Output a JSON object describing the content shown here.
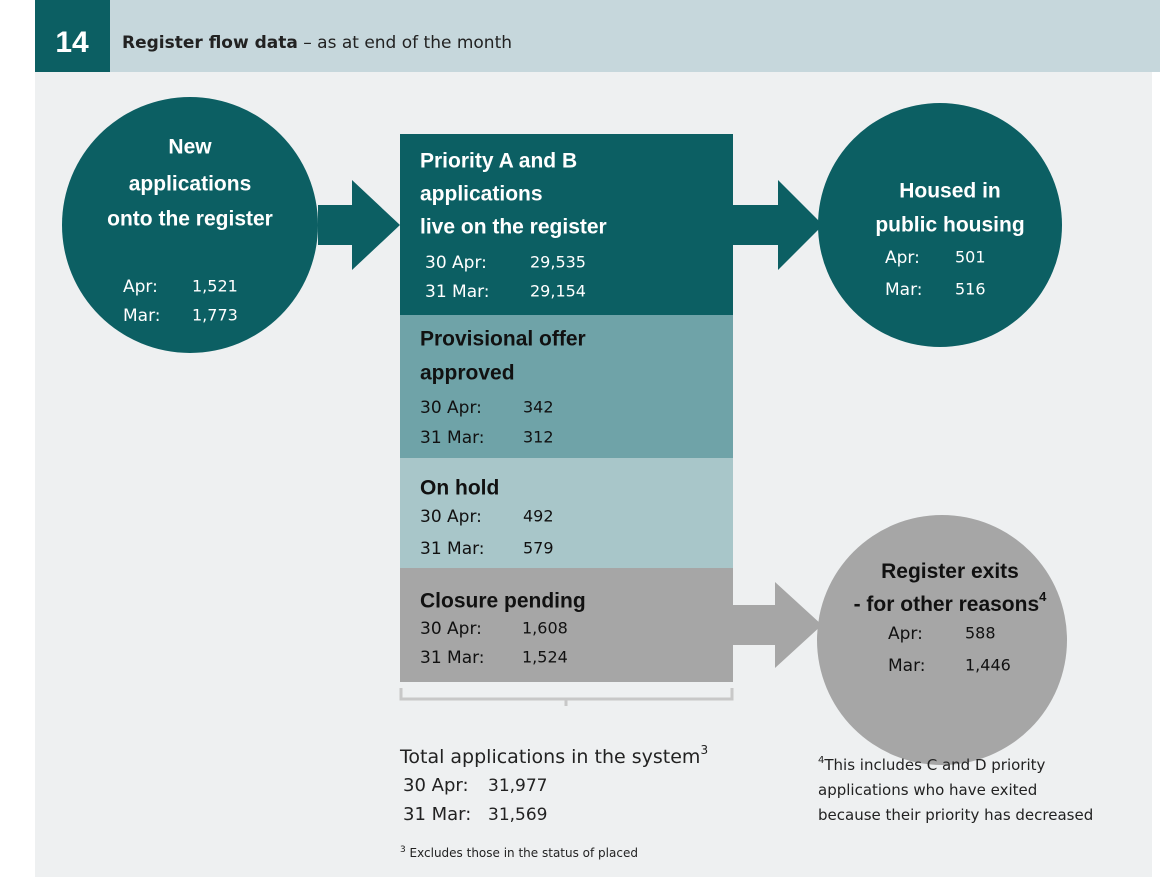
{
  "header": {
    "number": "14",
    "title": "Register flow data",
    "subtitle": " – as at end of the month"
  },
  "inflow": {
    "title_lines": [
      "New",
      "applications",
      "onto the register"
    ],
    "rows": [
      {
        "label": "Apr:",
        "value": "1,521"
      },
      {
        "label": "Mar:",
        "value": "1,773"
      }
    ]
  },
  "stages": [
    {
      "title_lines": [
        "Priority A and B",
        "applications",
        "live on the register"
      ],
      "rows": [
        {
          "label": "30 Apr:",
          "value": "29,535"
        },
        {
          "label": "31 Mar:",
          "value": "29,154"
        }
      ]
    },
    {
      "title_lines": [
        "Provisional offer",
        "approved"
      ],
      "rows": [
        {
          "label": "30 Apr:",
          "value": "342"
        },
        {
          "label": "31 Mar:",
          "value": "312"
        }
      ]
    },
    {
      "title_lines": [
        "On hold"
      ],
      "rows": [
        {
          "label": "30 Apr:",
          "value": "492"
        },
        {
          "label": "31 Mar:",
          "value": "579"
        }
      ]
    },
    {
      "title_lines": [
        "Closure pending"
      ],
      "rows": [
        {
          "label": "30 Apr:",
          "value": "1,608"
        },
        {
          "label": "31 Mar:",
          "value": "1,524"
        }
      ]
    }
  ],
  "housed": {
    "title_lines": [
      "Housed in",
      "public housing"
    ],
    "rows": [
      {
        "label": "Apr:",
        "value": "501"
      },
      {
        "label": "Mar:",
        "value": "516"
      }
    ]
  },
  "exits": {
    "title_lines": [
      "Register exits",
      "- for other reasons"
    ],
    "title_note": "4",
    "rows": [
      {
        "label": "Apr:",
        "value": "588"
      },
      {
        "label": "Mar:",
        "value": "1,446"
      }
    ]
  },
  "total": {
    "title": "Total applications in the system",
    "note": "3",
    "rows": [
      {
        "label": "30 Apr:",
        "value": "31,977"
      },
      {
        "label": "31 Mar:",
        "value": "31,569"
      }
    ]
  },
  "footnotes": [
    {
      "marker": "3",
      "lines": [
        " Excludes those in the status of placed"
      ]
    },
    {
      "marker": "4",
      "lines": [
        "This includes C and D priority",
        "applications who have exited",
        "because their priority has decreased"
      ]
    }
  ]
}
